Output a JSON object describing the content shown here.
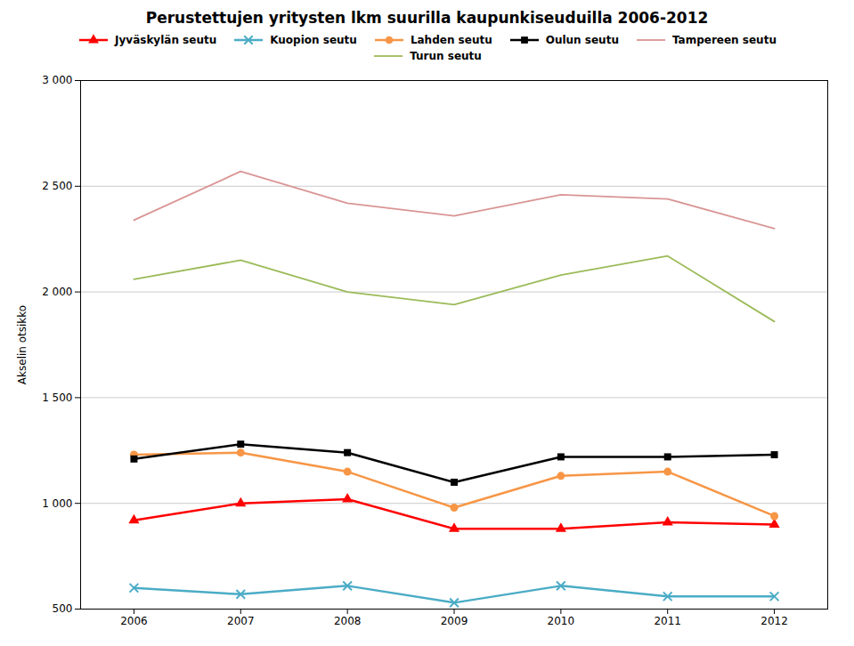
{
  "chart_data": {
    "type": "line",
    "title": "Perustettujen yritysten lkm suurilla kaupunkiseuduilla 2006-2012",
    "ylabel": "Akselin otsikko",
    "x": [
      2006,
      2007,
      2008,
      2009,
      2010,
      2011,
      2012
    ],
    "series": [
      {
        "name": "Jyväskylän seutu",
        "color": "#FF0000",
        "marker": "triangle",
        "values": [
          920,
          1000,
          1020,
          880,
          880,
          910,
          900
        ]
      },
      {
        "name": "Kuopion seutu",
        "color": "#4BACC6",
        "marker": "x",
        "values": [
          600,
          570,
          610,
          530,
          610,
          560,
          560
        ]
      },
      {
        "name": "Lahden seutu",
        "color": "#F79646",
        "marker": "circle",
        "values": [
          1230,
          1240,
          1150,
          980,
          1130,
          1150,
          940
        ]
      },
      {
        "name": "Oulun seutu",
        "color": "#000000",
        "marker": "square",
        "values": [
          1210,
          1280,
          1240,
          1100,
          1220,
          1220,
          1230
        ]
      },
      {
        "name": "Tampereen seutu",
        "color": "#D99594",
        "marker": "none",
        "values": [
          2340,
          2570,
          2420,
          2360,
          2460,
          2440,
          2300
        ]
      },
      {
        "name": "Turun seutu",
        "color": "#9BBB59",
        "marker": "none",
        "values": [
          2060,
          2150,
          2000,
          1940,
          2080,
          2170,
          1860
        ]
      }
    ],
    "xlim": [
      2005.5,
      2012.5
    ],
    "xticks": [
      2006,
      2007,
      2008,
      2009,
      2010,
      2011,
      2012
    ],
    "ylim": [
      500,
      3000
    ],
    "yticks": [
      500,
      {
        "value": 1000,
        "label": "1 000"
      },
      {
        "value": 1500,
        "label": "1 500"
      },
      {
        "value": 2000,
        "label": "2 000"
      },
      {
        "value": 2500,
        "label": "2 500"
      },
      {
        "value": 3000,
        "label": "3 000"
      }
    ],
    "grid": true,
    "legend": "top"
  }
}
